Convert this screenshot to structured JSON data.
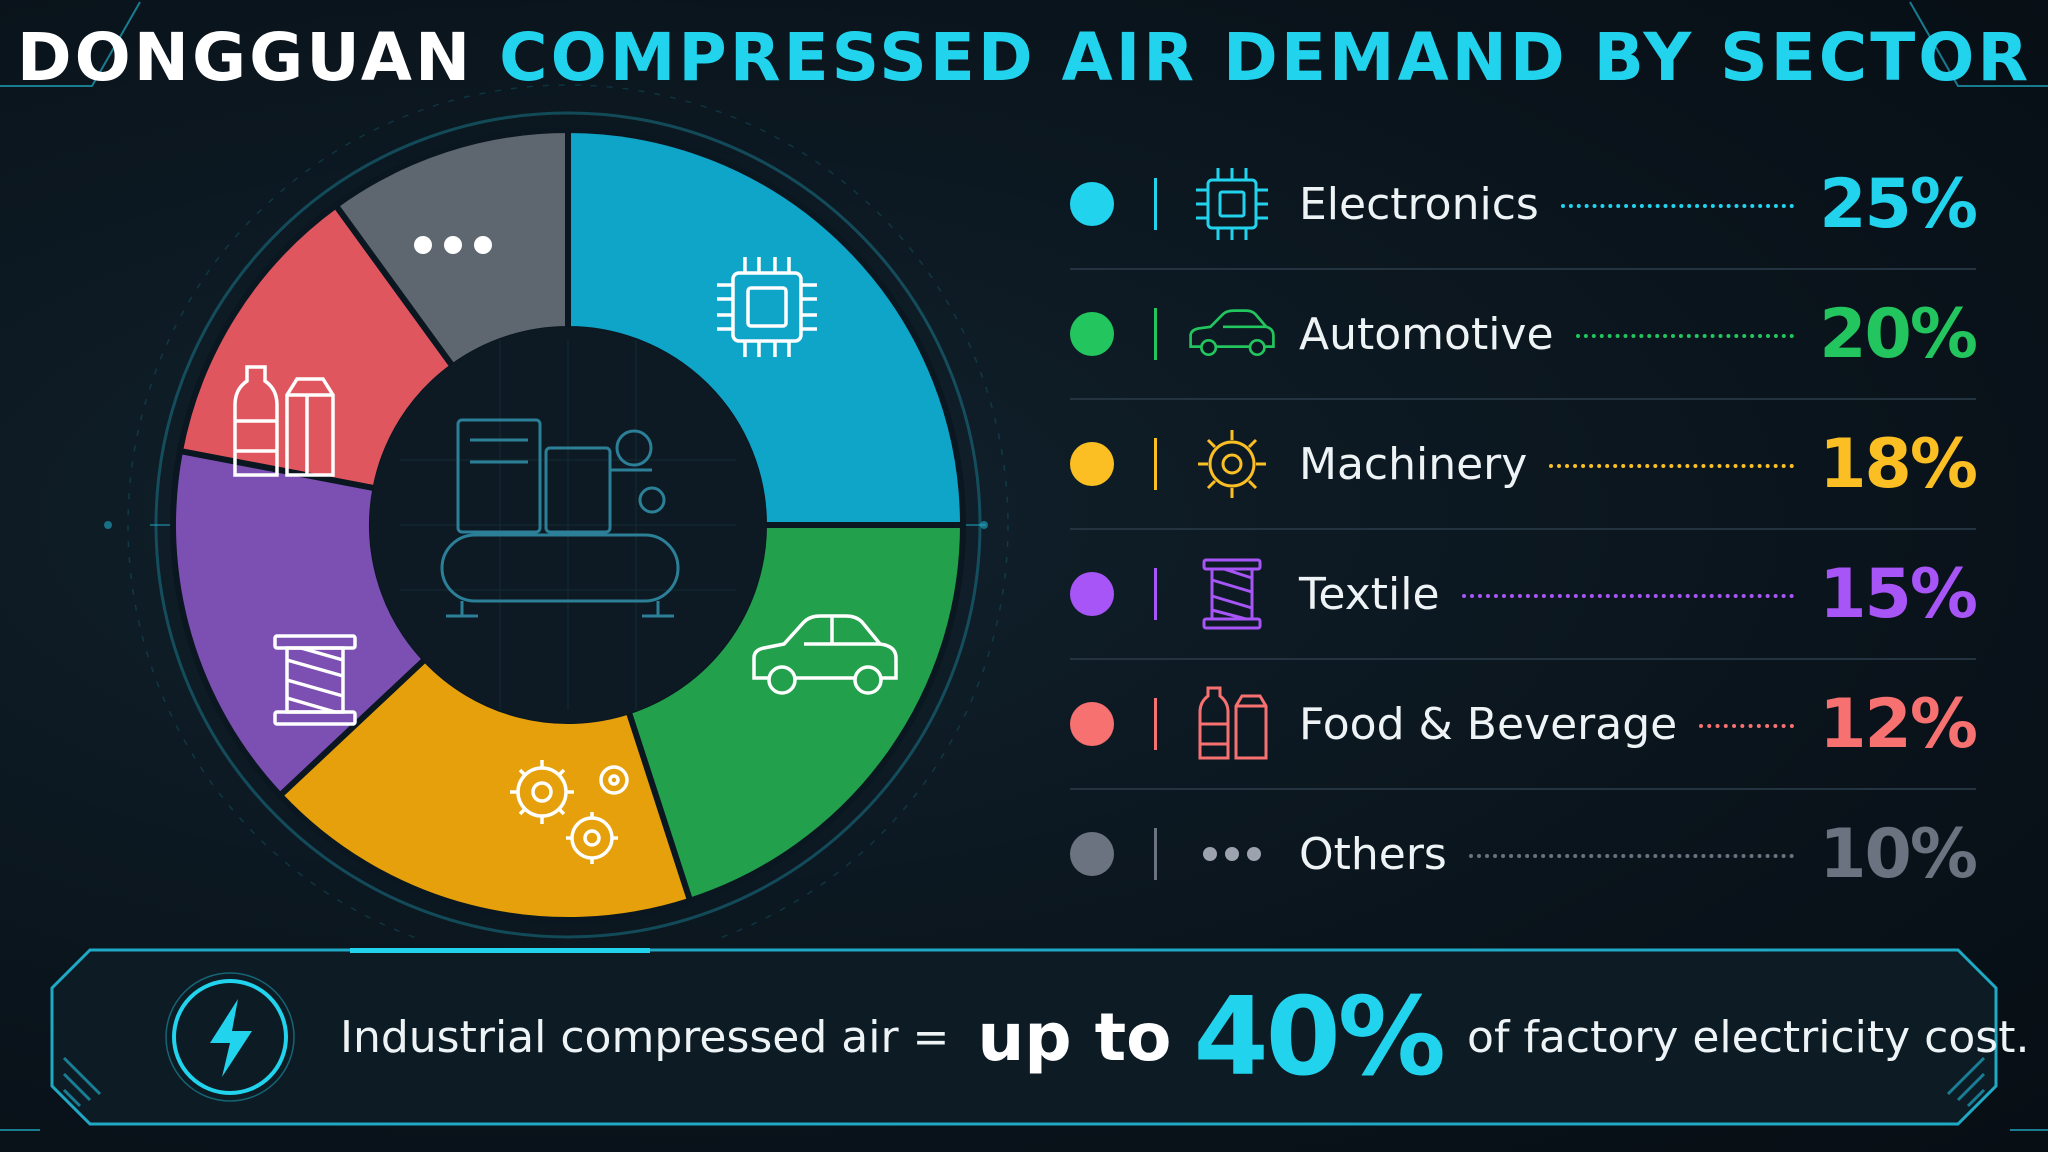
{
  "title": {
    "part1": "DONGGUAN",
    "part2": "COMPRESSED AIR DEMAND BY SECTOR"
  },
  "colors": {
    "electronics": "#0ea5c9",
    "automotive": "#22a04b",
    "machinery": "#e5a00c",
    "textile": "#7c4fb3",
    "food": "#e0565f",
    "others": "#5e6770",
    "accent": "#22d3ee"
  },
  "chart_data": {
    "type": "pie",
    "categories": [
      "Electronics",
      "Automotive",
      "Machinery",
      "Textile",
      "Food & Beverage",
      "Others"
    ],
    "values": [
      25,
      20,
      18,
      15,
      12,
      10
    ],
    "unit": "%",
    "icons": [
      "chip-icon",
      "car-icon",
      "gears-icon",
      "spool-icon",
      "bottles-icon",
      "dots-icon"
    ],
    "center_icon": "air-compressor-icon",
    "legend_placement": "right"
  },
  "legend": {
    "items": [
      {
        "label": "Electronics",
        "value": "25%",
        "color": "#22d3ee",
        "dot": "#22d3ee",
        "icon": "chip-icon"
      },
      {
        "label": "Automotive",
        "value": "20%",
        "color": "#22c55e",
        "dot": "#22c55e",
        "icon": "car-icon"
      },
      {
        "label": "Machinery",
        "value": "18%",
        "color": "#fbbf24",
        "dot": "#fbbf24",
        "icon": "gear-icon"
      },
      {
        "label": "Textile",
        "value": "15%",
        "color": "#a855f7",
        "dot": "#a855f7",
        "icon": "spool-icon"
      },
      {
        "label": "Food & Beverage",
        "value": "12%",
        "color": "#f87171",
        "dot": "#f87171",
        "icon": "bottles-icon"
      },
      {
        "label": "Others",
        "value": "10%",
        "color": "#6b7280",
        "dot": "#6b7280",
        "icon": "dots-icon"
      }
    ]
  },
  "banner": {
    "text1": "Industrial compressed air =",
    "text2": "up to",
    "text3": "40%",
    "text4": "of factory electricity cost.",
    "icon": "lightning-icon"
  }
}
